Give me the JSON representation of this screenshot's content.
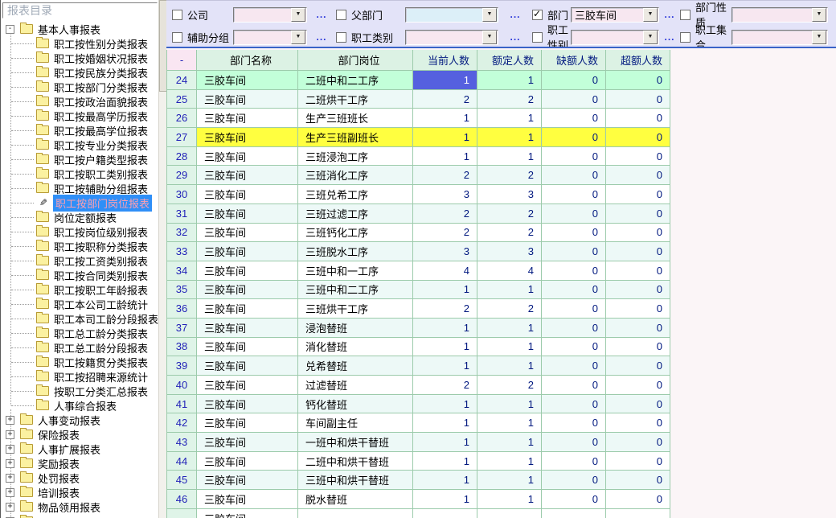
{
  "sidebar": {
    "title": "报表目录",
    "root": {
      "label": "基本人事报表"
    },
    "children": [
      {
        "label": "职工按性别分类报表"
      },
      {
        "label": "职工按婚姻状况报表"
      },
      {
        "label": "职工按民族分类报表"
      },
      {
        "label": "职工按部门分类报表"
      },
      {
        "label": "职工按政治面貌报表"
      },
      {
        "label": "职工按最高学历报表"
      },
      {
        "label": "职工按最高学位报表"
      },
      {
        "label": "职工按专业分类报表"
      },
      {
        "label": "职工按户籍类型报表"
      },
      {
        "label": "职工按职工类别报表"
      },
      {
        "label": "职工按辅助分组报表"
      },
      {
        "label": "职工按部门岗位报表",
        "selected": true
      },
      {
        "label": "岗位定额报表"
      },
      {
        "label": "职工按岗位级别报表"
      },
      {
        "label": "职工按职称分类报表"
      },
      {
        "label": "职工按工资类别报表"
      },
      {
        "label": "职工按合同类别报表"
      },
      {
        "label": "职工按职工年龄报表"
      },
      {
        "label": "职工本公司工龄统计"
      },
      {
        "label": "职工本司工龄分段报表"
      },
      {
        "label": "职工总工龄分类报表"
      },
      {
        "label": "职工总工龄分段报表"
      },
      {
        "label": "职工按籍贯分类报表"
      },
      {
        "label": "职工按招聘来源统计"
      },
      {
        "label": "按职工分类汇总报表"
      },
      {
        "label": "人事综合报表"
      }
    ],
    "collapsed_roots": [
      {
        "label": "人事变动报表"
      },
      {
        "label": "保险报表"
      },
      {
        "label": "人事扩展报表"
      },
      {
        "label": "奖励报表"
      },
      {
        "label": "处罚报表"
      },
      {
        "label": "培训报表"
      },
      {
        "label": "物品领用报表"
      },
      {
        "label": ""
      }
    ]
  },
  "icons": {
    "collapse": "-",
    "expand": "+",
    "dropdown_arrow": "▼",
    "pen_cursor": "✎",
    "check": "✓"
  },
  "filters": {
    "ellipsis": "...",
    "row1": [
      {
        "label": "公司",
        "checked": false,
        "value": "",
        "tone": "pink",
        "ellipsis": true
      },
      {
        "label": "父部门",
        "checked": false,
        "value": "",
        "tone": "blue",
        "ellipsis": true
      },
      {
        "label": "部门",
        "checked": true,
        "value": "三胶车间",
        "tone": "pink",
        "ellipsis": true
      },
      {
        "label": "部门性质",
        "checked": false,
        "value": "",
        "tone": "pink",
        "ellipsis": false
      }
    ],
    "row2": [
      {
        "label": "辅助分组",
        "checked": false,
        "value": "",
        "tone": "pink",
        "ellipsis": true
      },
      {
        "label": "职工类别",
        "checked": false,
        "value": "",
        "tone": "pink",
        "ellipsis": true
      },
      {
        "label": "职工性别",
        "checked": false,
        "value": "",
        "tone": "pink",
        "ellipsis": true
      },
      {
        "label": "职工集合",
        "checked": false,
        "value": "",
        "tone": "pink",
        "ellipsis": false
      }
    ]
  },
  "table": {
    "columns": [
      "-",
      "部门名称",
      "部门岗位",
      "当前人数",
      "额定人数",
      "缺额人数",
      "超额人数"
    ],
    "selected_row": "24",
    "selected_col": 3,
    "highlight_row": "27",
    "rows": [
      [
        "24",
        "三胶车间",
        "二班中和二工序",
        "1",
        "1",
        "0",
        "0"
      ],
      [
        "25",
        "三胶车间",
        "二班烘干工序",
        "2",
        "2",
        "0",
        "0"
      ],
      [
        "26",
        "三胶车间",
        "生产三班班长",
        "1",
        "1",
        "0",
        "0"
      ],
      [
        "27",
        "三胶车间",
        "生产三班副班长",
        "1",
        "1",
        "0",
        "0"
      ],
      [
        "28",
        "三胶车间",
        "三班浸泡工序",
        "1",
        "1",
        "0",
        "0"
      ],
      [
        "29",
        "三胶车间",
        "三班消化工序",
        "2",
        "2",
        "0",
        "0"
      ],
      [
        "30",
        "三胶车间",
        "三班兑希工序",
        "3",
        "3",
        "0",
        "0"
      ],
      [
        "31",
        "三胶车间",
        "三班过滤工序",
        "2",
        "2",
        "0",
        "0"
      ],
      [
        "32",
        "三胶车间",
        "三班钙化工序",
        "2",
        "2",
        "0",
        "0"
      ],
      [
        "33",
        "三胶车间",
        "三班脱水工序",
        "3",
        "3",
        "0",
        "0"
      ],
      [
        "34",
        "三胶车间",
        "三班中和一工序",
        "4",
        "4",
        "0",
        "0"
      ],
      [
        "35",
        "三胶车间",
        "三班中和二工序",
        "1",
        "1",
        "0",
        "0"
      ],
      [
        "36",
        "三胶车间",
        "三班烘干工序",
        "2",
        "2",
        "0",
        "0"
      ],
      [
        "37",
        "三胶车间",
        "浸泡替班",
        "1",
        "1",
        "0",
        "0"
      ],
      [
        "38",
        "三胶车间",
        "消化替班",
        "1",
        "1",
        "0",
        "0"
      ],
      [
        "39",
        "三胶车间",
        "兑希替班",
        "1",
        "1",
        "0",
        "0"
      ],
      [
        "40",
        "三胶车间",
        "过滤替班",
        "2",
        "2",
        "0",
        "0"
      ],
      [
        "41",
        "三胶车间",
        "钙化替班",
        "1",
        "1",
        "0",
        "0"
      ],
      [
        "42",
        "三胶车间",
        "车间副主任",
        "1",
        "1",
        "0",
        "0"
      ],
      [
        "43",
        "三胶车间",
        "一班中和烘干替班",
        "1",
        "1",
        "0",
        "0"
      ],
      [
        "44",
        "三胶车间",
        "二班中和烘干替班",
        "1",
        "1",
        "0",
        "0"
      ],
      [
        "45",
        "三胶车间",
        "三班中和烘干替班",
        "1",
        "1",
        "0",
        "0"
      ],
      [
        "46",
        "三胶车间",
        "脱水替班",
        "1",
        "1",
        "0",
        "0"
      ],
      [
        "",
        "三胶车间",
        "",
        "",
        "",
        "",
        ""
      ]
    ]
  },
  "colors": {
    "selected_cell": "#5560DF",
    "selected_row": "#C2FFD9",
    "highlight_row": "#FFFF40",
    "tree_selection_bg": "#2F8FF7",
    "tree_selection_text": "#FF9FB0",
    "grid_line": "#9CCBAB",
    "filter_panel": "#E3E3F8"
  }
}
